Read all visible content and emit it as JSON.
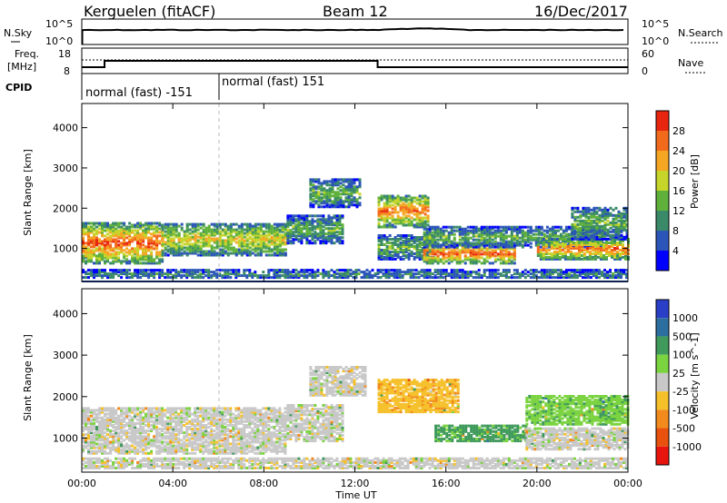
{
  "header": {
    "station": "Kerguelen (fitACF)",
    "beam": "Beam 12",
    "date": "16/Dec/2017"
  },
  "noise_panel": {
    "left_label": "N.Sky",
    "right_label": "N.Search",
    "left_ticks": [
      "10^5",
      "10^0"
    ],
    "right_ticks": [
      "10^5",
      "10^0"
    ]
  },
  "freq_panel": {
    "left_label_line1": "Freq.",
    "left_label_line2": "[MHz]",
    "right_label": "Nave",
    "left_ticks": [
      "18",
      "8"
    ],
    "right_ticks": [
      "60",
      "0"
    ],
    "freq_mhz_steps": [
      {
        "t": 0.0,
        "v": 9
      },
      {
        "t": 1.0,
        "v": 12
      },
      {
        "t": 13.0,
        "v": 9
      },
      {
        "t": 24.0,
        "v": 9
      }
    ],
    "nave_level": 40
  },
  "cpid_panel": {
    "label": "CPID",
    "segments": [
      {
        "start": 0.0,
        "label": "normal (fast) -151"
      },
      {
        "start": 6.0,
        "label": "normal (fast) 151"
      }
    ]
  },
  "x_axis": {
    "title": "Time UT",
    "range_hours": [
      0,
      24
    ],
    "tick_labels": [
      "00:00",
      "04:00",
      "08:00",
      "12:00",
      "16:00",
      "20:00",
      "00:00"
    ]
  },
  "chart_data": [
    {
      "type": "heatmap",
      "panel": "power",
      "ylabel": "Slant Range [km]",
      "ylim": [
        180,
        4600
      ],
      "yticks": [
        "1000",
        "2000",
        "3000",
        "4000"
      ],
      "colorbar_label": "Power [dB]",
      "colorbar_ticks": [
        "28",
        "24",
        "20",
        "16",
        "12",
        "8",
        "4"
      ],
      "colorbar_range": [
        0,
        32
      ],
      "colors": [
        "#0000ff",
        "#2b55b8",
        "#3a8a6a",
        "#5fb13b",
        "#c6d52a",
        "#f5a623",
        "#f26b1d",
        "#e8250e"
      ],
      "regions": [
        {
          "t0": 0.0,
          "t1": 3.5,
          "r0": 600,
          "r1": 1600,
          "peak": 28
        },
        {
          "t0": 3.5,
          "t1": 9.0,
          "r0": 800,
          "r1": 1600,
          "peak": 20
        },
        {
          "t0": 9.0,
          "t1": 11.5,
          "r0": 1100,
          "r1": 1800,
          "peak": 14
        },
        {
          "t0": 10.0,
          "t1": 12.2,
          "r0": 2000,
          "r1": 2700,
          "peak": 14
        },
        {
          "t0": 13.0,
          "t1": 15.2,
          "r0": 1500,
          "r1": 2300,
          "peak": 26
        },
        {
          "t0": 13.0,
          "t1": 15.5,
          "r0": 700,
          "r1": 1300,
          "peak": 14
        },
        {
          "t0": 15.0,
          "t1": 19.0,
          "r0": 600,
          "r1": 1100,
          "peak": 28
        },
        {
          "t0": 15.0,
          "t1": 23.0,
          "r0": 1000,
          "r1": 1500,
          "peak": 14
        },
        {
          "t0": 20.0,
          "t1": 24.0,
          "r0": 700,
          "r1": 1200,
          "peak": 26
        },
        {
          "t0": 21.5,
          "t1": 24.0,
          "r0": 1200,
          "r1": 2000,
          "peak": 14
        },
        {
          "t0": 0.0,
          "t1": 24.0,
          "r0": 200,
          "r1": 450,
          "peak": 10
        }
      ]
    },
    {
      "type": "heatmap",
      "panel": "velocity",
      "ylabel": "Slant Range [km]",
      "ylim": [
        180,
        4600
      ],
      "yticks": [
        "1000",
        "2000",
        "3000",
        "4000"
      ],
      "colorbar_label": "Velocity [m s^-1]",
      "colorbar_ticks": [
        "1000",
        "500",
        "100",
        "25",
        "-25",
        "-100",
        "-500",
        "-1000"
      ],
      "colors": [
        "#2a3fc7",
        "#2d6ea0",
        "#3f9a5c",
        "#7ad33f",
        "#c8c8c8",
        "#f5c02a",
        "#f28a1d",
        "#e8520e",
        "#e8150e"
      ],
      "regions": [
        {
          "t0": 0.0,
          "t1": 9.0,
          "r0": 600,
          "r1": 1700,
          "v": 0
        },
        {
          "t0": 9.0,
          "t1": 11.5,
          "r0": 900,
          "r1": 1800,
          "v": 0
        },
        {
          "t0": 10.0,
          "t1": 12.5,
          "r0": 2000,
          "r1": 2700,
          "v": 0
        },
        {
          "t0": 13.0,
          "t1": 16.5,
          "r0": 1600,
          "r1": 2400,
          "v": -80
        },
        {
          "t0": 15.5,
          "t1": 19.5,
          "r0": 900,
          "r1": 1300,
          "v": 120
        },
        {
          "t0": 19.5,
          "t1": 24.0,
          "r0": 1300,
          "r1": 2000,
          "v": 80
        },
        {
          "t0": 19.5,
          "t1": 24.0,
          "r0": 700,
          "r1": 1200,
          "v": 0
        },
        {
          "t0": 0.0,
          "t1": 24.0,
          "r0": 200,
          "r1": 500,
          "v": 0
        }
      ]
    }
  ]
}
